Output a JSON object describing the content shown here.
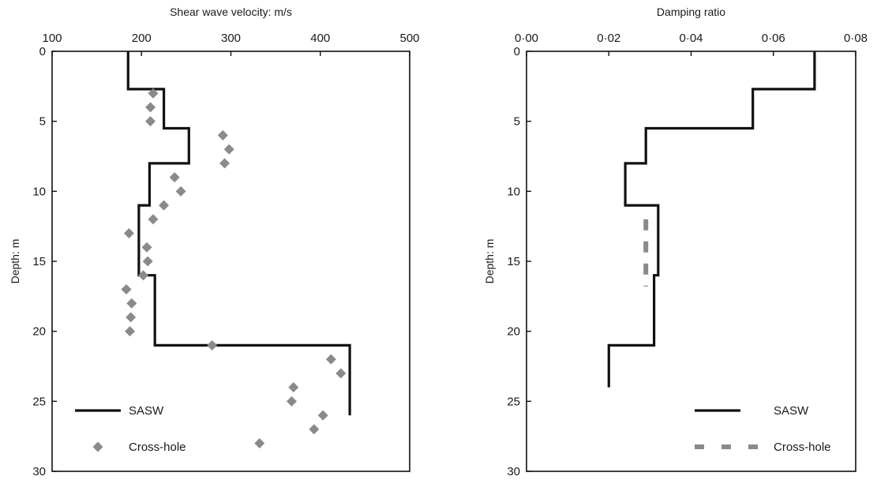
{
  "chart_data": [
    {
      "type": "line",
      "title": "",
      "xlabel": "Shear wave velocity: m/s",
      "ylabel": "Depth: m",
      "xlim": [
        100,
        500
      ],
      "ylim": [
        0,
        30
      ],
      "y_inverted": true,
      "x_axis_position": "top",
      "xticks": [
        "100",
        "200",
        "300",
        "400",
        "500"
      ],
      "yticks": [
        "0",
        "5",
        "10",
        "15",
        "20",
        "25",
        "30"
      ],
      "grid": false,
      "legend_position": "bottom-left",
      "series": [
        {
          "name": "SASW",
          "style": "step-line",
          "color": "#111111",
          "points": [
            [
              185,
              0
            ],
            [
              185,
              2.7
            ],
            [
              225,
              2.7
            ],
            [
              225,
              5.5
            ],
            [
              253,
              5.5
            ],
            [
              253,
              8.0
            ],
            [
              209,
              8.0
            ],
            [
              209,
              11.0
            ],
            [
              197,
              11.0
            ],
            [
              197,
              16.0
            ],
            [
              215,
              16.0
            ],
            [
              215,
              21.0
            ],
            [
              433,
              21.0
            ],
            [
              433,
              26.0
            ]
          ]
        },
        {
          "name": "Cross-hole",
          "style": "markers-diamond",
          "color": "#8a8a8a",
          "points": [
            [
              213,
              3
            ],
            [
              210,
              4
            ],
            [
              210,
              5
            ],
            [
              291,
              6
            ],
            [
              298,
              7
            ],
            [
              293,
              8
            ],
            [
              237,
              9
            ],
            [
              244,
              10
            ],
            [
              225,
              11
            ],
            [
              213,
              12
            ],
            [
              186,
              13
            ],
            [
              206,
              14
            ],
            [
              207,
              15
            ],
            [
              202,
              16
            ],
            [
              183,
              17
            ],
            [
              189,
              18
            ],
            [
              188,
              19
            ],
            [
              187,
              20
            ],
            [
              279,
              21
            ],
            [
              412,
              22
            ],
            [
              423,
              23
            ],
            [
              370,
              24
            ],
            [
              368,
              25
            ],
            [
              403,
              26
            ],
            [
              393,
              27
            ],
            [
              332,
              28
            ]
          ]
        }
      ]
    },
    {
      "type": "line",
      "title": "",
      "xlabel": "Damping ratio",
      "ylabel": "Depth: m",
      "xlim": [
        0,
        0.08
      ],
      "ylim": [
        0,
        30
      ],
      "y_inverted": true,
      "x_axis_position": "top",
      "xticks": [
        "0·00",
        "0·02",
        "0·04",
        "0·06",
        "0·08"
      ],
      "yticks": [
        "0",
        "5",
        "10",
        "15",
        "20",
        "25",
        "30"
      ],
      "grid": false,
      "legend_position": "bottom-right",
      "series": [
        {
          "name": "SASW",
          "style": "step-line",
          "color": "#111111",
          "points": [
            [
              0.07,
              0
            ],
            [
              0.07,
              2.7
            ],
            [
              0.055,
              2.7
            ],
            [
              0.055,
              5.5
            ],
            [
              0.029,
              5.5
            ],
            [
              0.029,
              8.0
            ],
            [
              0.024,
              8.0
            ],
            [
              0.024,
              11.0
            ],
            [
              0.032,
              11.0
            ],
            [
              0.032,
              16.0
            ],
            [
              0.031,
              16.0
            ],
            [
              0.031,
              21.0
            ],
            [
              0.02,
              21.0
            ],
            [
              0.02,
              24.0
            ]
          ]
        },
        {
          "name": "Cross-hole",
          "style": "dashed-line",
          "color": "#8a8a8a",
          "points": [
            [
              0.029,
              12.0
            ],
            [
              0.029,
              16.8
            ]
          ]
        }
      ]
    }
  ]
}
